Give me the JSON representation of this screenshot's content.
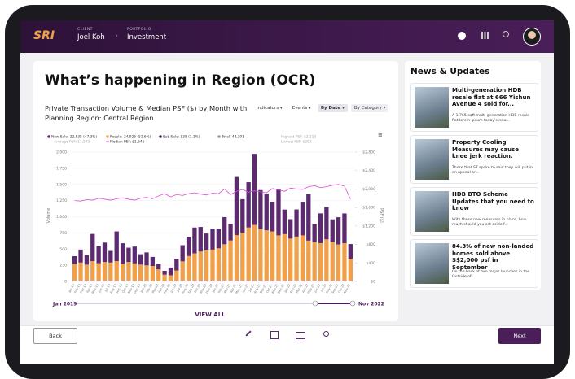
{
  "header": {
    "logo": "SRI",
    "client_label": "CLIENT",
    "client": "Joel Koh",
    "portfolio_label": "PORTFOLIO",
    "portfolio": "Investment"
  },
  "main": {
    "title": "What’s happening in Region (OCR)",
    "filters": [
      "Indicators",
      "Events",
      "By Date",
      "By Category"
    ],
    "view_all": "VIEW ALL"
  },
  "chart_data": {
    "type": "bar",
    "stacked": true,
    "title": "Private Transaction Volume & Median PSF ($) by Month with Planning Region: Central Region",
    "ylabel": "Volume",
    "y2label": "PSF ($)",
    "categories": [
      "Jan-19",
      "Feb-19",
      "Mar-19",
      "Apr-19",
      "May-19",
      "Jun-19",
      "Jul-19",
      "Aug-19",
      "Sep-19",
      "Oct-19",
      "Nov-19",
      "Dec-19",
      "Jan-20",
      "Feb-20",
      "Mar-20",
      "Apr-20",
      "May-20",
      "Jun-20",
      "Jul-20",
      "Aug-20",
      "Sep-20",
      "Oct-20",
      "Nov-20",
      "Dec-20",
      "Jan-21",
      "Feb-21",
      "Mar-21",
      "Apr-21",
      "May-21",
      "Jun-21",
      "Jul-21",
      "Aug-21",
      "Sep-21",
      "Oct-21",
      "Nov-21",
      "Dec-21",
      "Jan-22",
      "Feb-22",
      "Mar-22",
      "Apr-22",
      "May-22",
      "Jun-22",
      "Jul-22",
      "Aug-22",
      "Sep-22",
      "Oct-22",
      "Nov-22"
    ],
    "series": [
      {
        "name": "Sub Sale: 538 (1.1%)",
        "color": "#3b1747",
        "values": [
          10,
          12,
          9,
          14,
          11,
          10,
          12,
          13,
          10,
          11,
          9,
          10,
          8,
          9,
          6,
          4,
          5,
          8,
          10,
          12,
          13,
          12,
          11,
          12,
          12,
          14,
          13,
          15,
          12,
          14,
          13,
          12,
          11,
          13,
          12,
          11,
          12,
          13,
          12,
          11,
          10,
          12,
          11,
          10,
          12,
          11,
          8
        ]
      },
      {
        "name": "Resale: 24,926 (51.6%)",
        "color": "#f0a048",
        "values": [
          260,
          280,
          250,
          300,
          270,
          290,
          280,
          300,
          260,
          290,
          270,
          250,
          240,
          230,
          180,
          100,
          90,
          160,
          300,
          380,
          420,
          450,
          470,
          480,
          500,
          560,
          620,
          700,
          740,
          820,
          860,
          800,
          780,
          760,
          700,
          720,
          650,
          680,
          700,
          620,
          600,
          580,
          640,
          600,
          560,
          580,
          340
        ]
      },
      {
        "name": "New Sale: 22,835 (47.3%)",
        "color": "#5c2a6f",
        "values": [
          120,
          200,
          150,
          420,
          260,
          300,
          180,
          460,
          320,
          220,
          260,
          160,
          200,
          140,
          80,
          60,
          120,
          180,
          250,
          300,
          400,
          380,
          260,
          320,
          300,
          420,
          260,
          900,
          520,
          700,
          1100,
          600,
          560,
          460,
          720,
          380,
          300,
          420,
          520,
          720,
          280,
          460,
          500,
          350,
          420,
          460,
          230
        ]
      },
      {
        "name": "Median PSF: $1,645",
        "color": "#d94fd1",
        "type": "line",
        "axis": "y2",
        "values": [
          1750,
          1740,
          1770,
          1760,
          1800,
          1780,
          1760,
          1790,
          1810,
          1780,
          1760,
          1800,
          1820,
          1790,
          1850,
          1900,
          1830,
          1880,
          1860,
          1900,
          1920,
          1890,
          1870,
          1910,
          1900,
          2000,
          1880,
          1950,
          1990,
          1930,
          1960,
          1940,
          1920,
          2010,
          1980,
          1950,
          2020,
          2000,
          1990,
          2050,
          2070,
          2030,
          2050,
          2080,
          2100,
          2060,
          1780
        ]
      }
    ],
    "legend_extra": [
      "Total: 48,391",
      "Highest PSF: $2,213",
      "Average PSF: $1,573",
      "Lowest PSF: $283"
    ],
    "ylim": [
      0,
      2000
    ],
    "yticks": [
      0,
      250,
      500,
      750,
      {
        "value": 1000,
        "label": "1,000"
      },
      {
        "value": 1250,
        "label": "1,250"
      },
      {
        "value": 1500,
        "label": "1,500"
      },
      {
        "value": 1750,
        "label": "1,750"
      },
      {
        "value": 2000,
        "label": "2,000"
      }
    ],
    "y2lim": [
      0,
      2800
    ],
    "y2ticks": [
      {
        "value": 0,
        "label": "$0"
      },
      {
        "value": 400,
        "label": "$400"
      },
      {
        "value": 800,
        "label": "$800"
      },
      {
        "value": 1200,
        "label": "$1,200"
      },
      {
        "value": 1600,
        "label": "$1,600"
      },
      {
        "value": 2000,
        "label": "$2,000"
      },
      {
        "value": 2400,
        "label": "$2,400"
      },
      {
        "value": 2800,
        "label": "$2,800"
      }
    ],
    "grid": true,
    "range_start": "Jan 2019",
    "range_end": "Nov 2022"
  },
  "news": {
    "title": "News & Updates",
    "items": [
      {
        "title": "Multi-generation HDB resale flat at 666 Yishun Avenue 4 sold for...",
        "snippet": "A 1,765-sqft multi-generation HDB resale flat lorem ipsum today's new..."
      },
      {
        "title": "Property Cooling Measures may cause knee jerk reaction.",
        "snippet": "Those that ST spoke to said they will put in an appeal or..."
      },
      {
        "title": "HDB BTO Scheme Updates that you need to know",
        "snippet": "With these new measures in place, how much should you set aside f..."
      },
      {
        "title": "84.3% of new non-landed homes sold above S$2,000 psf in September",
        "snippet": "On the back of two major launches in the Outside of..."
      }
    ]
  },
  "footer": {
    "back": "Back",
    "next": "Next"
  }
}
